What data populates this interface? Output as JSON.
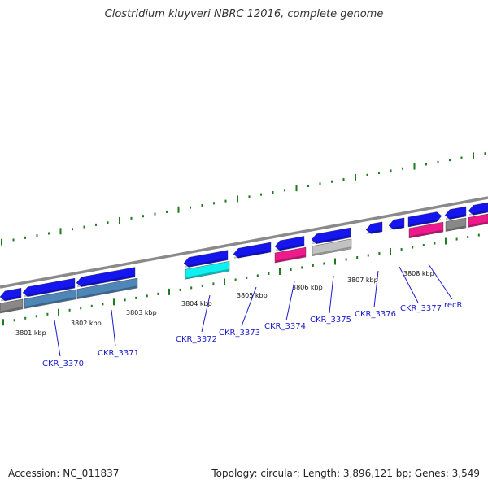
{
  "header": {
    "title": "Clostridium kluyveri NBRC 12016, complete genome"
  },
  "footer": {
    "accession": "Accession: NC_011837",
    "summary": "Topology: circular; Length: 3,896,121 bp; Genes: 3,549"
  },
  "colors": {
    "cds_blue": "#1515f0",
    "cds_pink": "#ee1a8c",
    "cds_cyan": "#11f0f0",
    "cds_gray": "#888888",
    "cds_lightgray": "#c2c2c2",
    "cds_steel": "#4e86b8",
    "backbone": "#8a8a8a",
    "tick": "#1f7a1f",
    "gene_label": "#1a1acc",
    "kbp_label": "#111111"
  },
  "scale": {
    "labels": [
      "3801 kbp",
      "3802 kbp",
      "3803 kbp",
      "3804 kbp",
      "3805 kbp",
      "3806 kbp",
      "3807 kbp",
      "3808 kbp"
    ]
  },
  "genes": [
    {
      "name": "CKR_3370",
      "shows_label": true
    },
    {
      "name": "CKR_3371",
      "shows_label": true
    },
    {
      "name": "CKR_3372",
      "shows_label": true
    },
    {
      "name": "CKR_3373",
      "shows_label": true
    },
    {
      "name": "CKR_3374",
      "shows_label": true
    },
    {
      "name": "CKR_3375",
      "shows_label": true
    },
    {
      "name": "CKR_3376",
      "shows_label": true
    },
    {
      "name": "CKR_3377",
      "shows_label": true
    },
    {
      "name": "recR",
      "shows_label": true
    }
  ]
}
